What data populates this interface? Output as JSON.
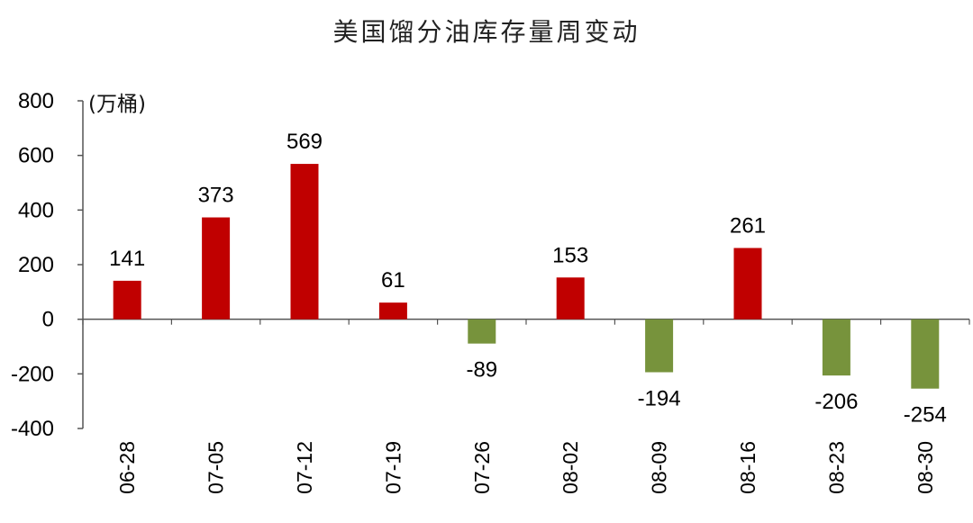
{
  "chart_data": {
    "type": "bar",
    "title": "美国馏分油库存量周变动",
    "ylabel": "(万桶)",
    "xlabel": "",
    "categories": [
      "06-28",
      "07-05",
      "07-12",
      "07-19",
      "07-26",
      "08-02",
      "08-09",
      "08-16",
      "08-23",
      "08-30"
    ],
    "values": [
      141,
      373,
      569,
      61,
      -89,
      153,
      -194,
      261,
      -206,
      -254
    ],
    "ylim": [
      -400,
      800
    ],
    "yticks": [
      -400,
      -200,
      0,
      200,
      400,
      600,
      800
    ],
    "grid": false,
    "legend": "none",
    "colors": {
      "positive": "#c00000",
      "negative": "#77933c",
      "axis": "#555555",
      "text": "#000000"
    }
  }
}
